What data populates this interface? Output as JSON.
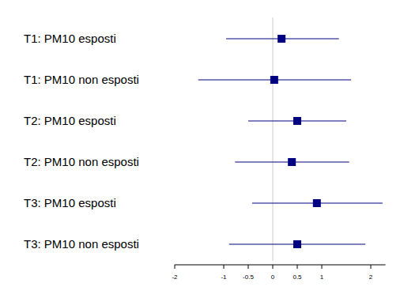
{
  "chart_data": {
    "type": "forest",
    "categories": [
      "T1: PM10 esposti",
      "T1: PM10 non esposti",
      "T2: PM10 esposti",
      "T2: PM10 non esposti",
      "T3: PM10 esposti",
      "T3: PM10 non esposti"
    ],
    "values": [
      0.18,
      0.03,
      0.5,
      0.39,
      0.9,
      0.5
    ],
    "lower": [
      -0.95,
      -1.52,
      -0.5,
      -0.77,
      -0.42,
      -0.89
    ],
    "upper": [
      1.35,
      1.6,
      1.5,
      1.56,
      2.24,
      1.89
    ],
    "reference_line": 0,
    "color": "#000080",
    "xlim": [
      -2,
      2.3
    ],
    "xticks": [
      -2,
      -1,
      -0.5,
      0,
      0.5,
      1,
      2
    ]
  }
}
